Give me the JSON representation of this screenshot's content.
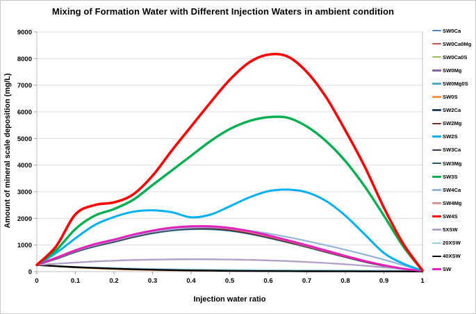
{
  "figure": {
    "title": "Mixing of Formation Water with Different Injection Waters in ambient condition",
    "xlabel": "Injection water ratio",
    "ylabel": "Amount of mineral scale deposition (mg/L)"
  },
  "chart_data": {
    "type": "line",
    "title": "Mixing of Formation Water with Different Injection Waters in ambient condition",
    "xlabel": "Injection water ratio",
    "ylabel": "Amount of mineral scale deposition (mg/L)",
    "xlim": [
      0,
      1
    ],
    "ylim": [
      0,
      9000
    ],
    "xticks": [
      0,
      0.1,
      0.2,
      0.3,
      0.4,
      0.5,
      0.6,
      0.7,
      0.8,
      0.9,
      1
    ],
    "yticks": [
      0,
      1000,
      2000,
      3000,
      4000,
      5000,
      6000,
      7000,
      8000,
      9000
    ],
    "grid": "horizontal-light-gray",
    "legend_position": "right",
    "x": [
      0,
      0.05,
      0.1,
      0.15,
      0.2,
      0.25,
      0.3,
      0.35,
      0.4,
      0.45,
      0.5,
      0.55,
      0.6,
      0.65,
      0.7,
      0.75,
      0.8,
      0.85,
      0.9,
      0.95,
      1
    ],
    "series": [
      {
        "name": "SW0Ca",
        "color": "#4f81bd",
        "width": 1.8,
        "z": 3,
        "values": [
          250,
          485,
          750,
          967,
          1132,
          1315,
          1465,
          1570,
          1620,
          1620,
          1562,
          1444,
          1290,
          1118,
          935,
          742,
          552,
          371,
          220,
          99,
          30
        ]
      },
      {
        "name": "SW0Ca0Mg",
        "color": "#c0504d",
        "width": 1.8,
        "z": 4,
        "values": [
          250,
          495,
          765,
          985,
          1150,
          1335,
          1485,
          1590,
          1640,
          1640,
          1580,
          1460,
          1305,
          1130,
          945,
          750,
          560,
          378,
          225,
          102,
          30
        ]
      },
      {
        "name": "SW0Ca0S",
        "color": "#9bbb59",
        "width": 1.8,
        "z": 2,
        "values": [
          250,
          473,
          731,
          942,
          1105,
          1286,
          1436,
          1540,
          1590,
          1590,
          1533,
          1417,
          1266,
          1097,
          918,
          727,
          540,
          362,
          213,
          95,
          30
        ]
      },
      {
        "name": "SW0Mg",
        "color": "#8064a2",
        "width": 1.8,
        "z": 6,
        "values": [
          250,
          300,
          345,
          385,
          415,
          440,
          455,
          465,
          470,
          468,
          460,
          445,
          425,
          398,
          365,
          325,
          278,
          225,
          165,
          100,
          30
        ]
      },
      {
        "name": "SW0Mg0S",
        "color": "#4bacc6",
        "width": 1.8,
        "z": 2,
        "values": [
          250,
          470,
          727,
          937,
          1100,
          1280,
          1430,
          1533,
          1583,
          1583,
          1526,
          1411,
          1261,
          1092,
          914,
          724,
          538,
          360,
          212,
          94,
          30
        ]
      },
      {
        "name": "SW0S",
        "color": "#f79646",
        "width": 1.8,
        "z": 1,
        "values": [
          250,
          195,
          150,
          115,
          88,
          68,
          52,
          40,
          32,
          26,
          22,
          20,
          22,
          26,
          30,
          33,
          34,
          33,
          30,
          25,
          15
        ]
      },
      {
        "name": "SW2Ca",
        "color": "#254061",
        "width": 1.8,
        "z": 3,
        "values": [
          250,
          482,
          745,
          960,
          1125,
          1308,
          1458,
          1562,
          1612,
          1612,
          1554,
          1437,
          1284,
          1112,
          930,
          738,
          549,
          368,
          218,
          98,
          30
        ]
      },
      {
        "name": "SW2Mg",
        "color": "#772c2a",
        "width": 1.8,
        "z": 4,
        "values": [
          250,
          490,
          758,
          975,
          1140,
          1325,
          1475,
          1580,
          1630,
          1630,
          1570,
          1452,
          1297,
          1124,
          940,
          746,
          556,
          374,
          222,
          100,
          30
        ]
      },
      {
        "name": "SW2S",
        "color": "#00b0f0",
        "width": 3.0,
        "z": 8,
        "values": [
          250,
          700,
          1250,
          1750,
          2050,
          2250,
          2300,
          2230,
          2040,
          2140,
          2450,
          2780,
          3020,
          3080,
          2980,
          2650,
          2100,
          1400,
          700,
          300,
          40
        ]
      },
      {
        "name": "SW3Ca",
        "color": "#403152",
        "width": 1.8,
        "z": 3,
        "values": [
          250,
          479,
          740,
          954,
          1118,
          1300,
          1450,
          1554,
          1605,
          1605,
          1547,
          1430,
          1278,
          1107,
          926,
          734,
          546,
          366,
          216,
          97,
          30
        ]
      },
      {
        "name": "SW3Mg",
        "color": "#215968",
        "width": 1.8,
        "z": 2,
        "values": [
          250,
          476,
          736,
          948,
          1112,
          1293,
          1443,
          1547,
          1598,
          1598,
          1540,
          1424,
          1272,
          1102,
          922,
          731,
          543,
          364,
          215,
          96,
          30
        ]
      },
      {
        "name": "SW3S",
        "color": "#00b050",
        "width": 3.4,
        "z": 9,
        "values": [
          250,
          800,
          1600,
          2100,
          2350,
          2700,
          3250,
          3800,
          4350,
          4900,
          5350,
          5650,
          5800,
          5780,
          5450,
          4900,
          4150,
          3200,
          2100,
          950,
          40
        ]
      },
      {
        "name": "SW4Ca",
        "color": "#95b3d7",
        "width": 2.2,
        "z": 5,
        "values": [
          250,
          500,
          770,
          990,
          1160,
          1340,
          1490,
          1590,
          1650,
          1660,
          1620,
          1540,
          1430,
          1300,
          1150,
          990,
          820,
          640,
          450,
          240,
          30
        ]
      },
      {
        "name": "SW4Mg",
        "color": "#d99694",
        "width": 2.0,
        "z": 4,
        "values": [
          250,
          505,
          780,
          1000,
          1170,
          1355,
          1505,
          1615,
          1665,
          1665,
          1605,
          1485,
          1325,
          1150,
          960,
          765,
          570,
          385,
          230,
          105,
          30
        ]
      },
      {
        "name": "SW4S",
        "color": "#ff0000",
        "width": 3.6,
        "z": 10,
        "values": [
          250,
          950,
          2150,
          2500,
          2600,
          2900,
          3600,
          4550,
          5450,
          6350,
          7200,
          7850,
          8150,
          8080,
          7500,
          6550,
          5300,
          3950,
          2400,
          1050,
          40
        ]
      },
      {
        "name": "5XSW",
        "color": "#b2a2c7",
        "width": 2.2,
        "z": 6,
        "values": [
          250,
          295,
          338,
          377,
          407,
          432,
          447,
          457,
          462,
          460,
          452,
          438,
          418,
          392,
          359,
          320,
          273,
          220,
          160,
          95,
          25
        ]
      },
      {
        "name": "20XSW",
        "color": "#92cddc",
        "width": 1.8,
        "z": 1,
        "values": [
          250,
          215,
          185,
          160,
          140,
          122,
          108,
          96,
          86,
          78,
          72,
          67,
          63,
          60,
          57,
          54,
          51,
          48,
          45,
          40,
          25
        ]
      },
      {
        "name": "40XSW",
        "color": "#000000",
        "width": 2.4,
        "z": 1,
        "values": [
          250,
          205,
          168,
          138,
          112,
          90,
          72,
          57,
          45,
          36,
          29,
          24,
          20,
          17,
          14,
          12,
          10,
          9,
          8,
          7,
          5
        ]
      },
      {
        "name": "SW",
        "color": "#e320b9",
        "width": 3.0,
        "z": 7,
        "values": [
          250,
          520,
          800,
          1030,
          1200,
          1390,
          1540,
          1650,
          1700,
          1700,
          1640,
          1520,
          1360,
          1180,
          990,
          790,
          590,
          400,
          240,
          110,
          30
        ]
      }
    ]
  },
  "style": {
    "gridline_color": "#dcdcdc",
    "plot_border_color": "#bfbfbf",
    "tick_color": "#9b9b9b",
    "background": "#ffffff"
  }
}
